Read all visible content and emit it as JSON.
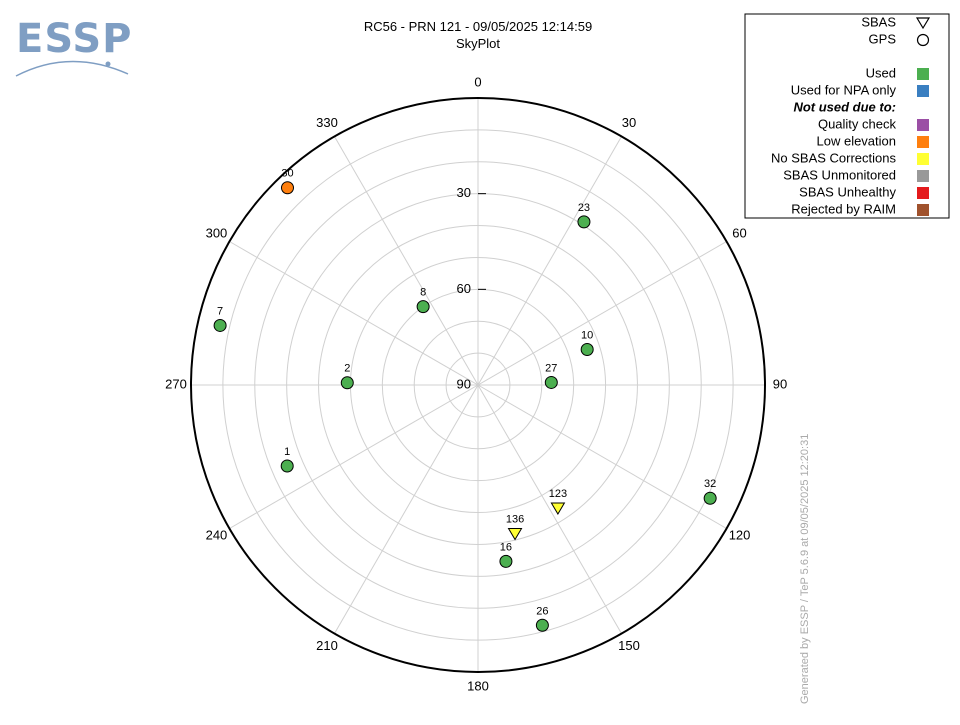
{
  "logo": {
    "text": "ESSP",
    "color": "#7f9ec3"
  },
  "chart_data": {
    "type": "scatter",
    "plot_kind": "polar skyplot",
    "title": "RC56 - PRN 121 - 09/05/2025 12:14:59",
    "subtitle": "SkyPlot",
    "azimuth_labels": [
      {
        "az": 0,
        "label": "0"
      },
      {
        "az": 30,
        "label": "30"
      },
      {
        "az": 60,
        "label": "60"
      },
      {
        "az": 90,
        "label": "90"
      },
      {
        "az": 120,
        "label": "120"
      },
      {
        "az": 150,
        "label": "150"
      },
      {
        "az": 180,
        "label": "180"
      },
      {
        "az": 210,
        "label": "210"
      },
      {
        "az": 240,
        "label": "240"
      },
      {
        "az": 270,
        "label": "270"
      },
      {
        "az": 300,
        "label": "300"
      },
      {
        "az": 330,
        "label": "330"
      }
    ],
    "elevation_labels": [
      {
        "el": 30,
        "label": "30"
      },
      {
        "el": 60,
        "label": "60"
      },
      {
        "el": 90,
        "label": "90"
      }
    ],
    "elevation_range": [
      0,
      90
    ],
    "grid": true,
    "legend_position": "top-right",
    "satellites": [
      {
        "prn": "30",
        "type": "GPS",
        "status": "Low elevation",
        "az": 316,
        "el": 4
      },
      {
        "prn": "23",
        "type": "GPS",
        "status": "Used",
        "az": 33,
        "el": 29
      },
      {
        "prn": "8",
        "type": "GPS",
        "status": "Used",
        "az": 325,
        "el": 60
      },
      {
        "prn": "10",
        "type": "GPS",
        "status": "Used",
        "az": 72,
        "el": 54
      },
      {
        "prn": "7",
        "type": "GPS",
        "status": "Used",
        "az": 283,
        "el": 7
      },
      {
        "prn": "2",
        "type": "GPS",
        "status": "Used",
        "az": 271,
        "el": 49
      },
      {
        "prn": "27",
        "type": "GPS",
        "status": "Used",
        "az": 88,
        "el": 67
      },
      {
        "prn": "1",
        "type": "GPS",
        "status": "Used",
        "az": 247,
        "el": 25
      },
      {
        "prn": "32",
        "type": "GPS",
        "status": "Used",
        "az": 116,
        "el": 9
      },
      {
        "prn": "123",
        "type": "SBAS",
        "status": "No SBAS Corrections",
        "az": 147,
        "el": 44
      },
      {
        "prn": "136",
        "type": "SBAS",
        "status": "No SBAS Corrections",
        "az": 166,
        "el": 42
      },
      {
        "prn": "16",
        "type": "GPS",
        "status": "Used",
        "az": 171,
        "el": 34
      },
      {
        "prn": "26",
        "type": "GPS",
        "status": "Used",
        "az": 165,
        "el": 12
      }
    ]
  },
  "legend": {
    "symbols": [
      {
        "label": "SBAS",
        "shape": "triangle"
      },
      {
        "label": "GPS",
        "shape": "circle"
      }
    ],
    "statuses": [
      {
        "label": "Used",
        "color": "#4caf50",
        "bold": false
      },
      {
        "label": "Used for NPA only",
        "color": "#3a7fc1",
        "bold": false
      },
      {
        "label": "Not used due to:",
        "color": null,
        "bold": true
      },
      {
        "label": "Quality check",
        "color": "#9b4fa5",
        "bold": false
      },
      {
        "label": "Low elevation",
        "color": "#ff7f0e",
        "bold": false
      },
      {
        "label": "No SBAS Corrections",
        "color": "#ffff33",
        "bold": false
      },
      {
        "label": "SBAS Unmonitored",
        "color": "#999999",
        "bold": false
      },
      {
        "label": "SBAS Unhealthy",
        "color": "#e41a1c",
        "bold": false
      },
      {
        "label": "Rejected by RAIM",
        "color": "#a0522d",
        "bold": false
      }
    ]
  },
  "footer": {
    "text": "Generated by ESSP / TeP 5.6.9 at 09/05/2025 12:20:31"
  },
  "colors": {
    "Used": "#4caf50",
    "Used for NPA only": "#3a7fc1",
    "Quality check": "#9b4fa5",
    "Low elevation": "#ff7f0e",
    "No SBAS Corrections": "#ffff33",
    "SBAS Unmonitored": "#999999",
    "SBAS Unhealthy": "#e41a1c",
    "Rejected by RAIM": "#a0522d"
  }
}
